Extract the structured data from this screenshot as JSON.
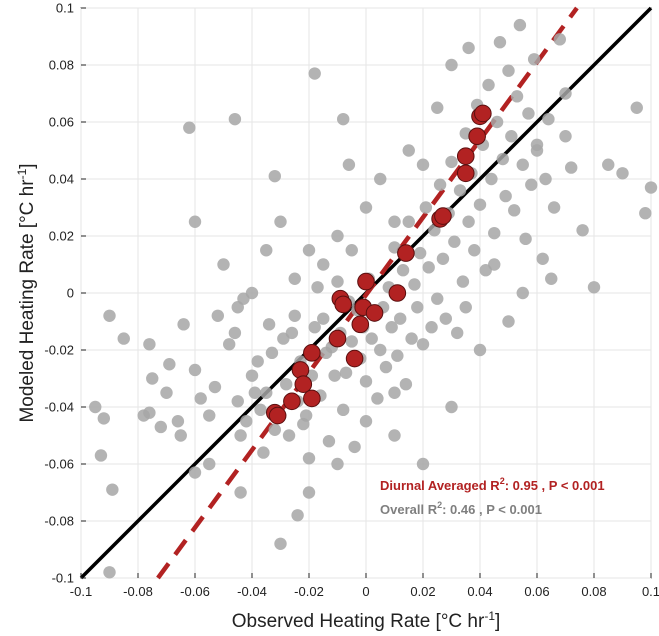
{
  "chart_data": {
    "type": "scatter",
    "xlabel": "Observed Heating Rate [°C hr",
    "xlabel_sup": "-1",
    "xlabel_end": "]",
    "ylabel": "Modeled Heating Rate [°C hr",
    "ylabel_sup": "-1",
    "ylabel_end": "]",
    "xlim": [
      -0.1,
      0.1
    ],
    "ylim": [
      -0.1,
      0.1
    ],
    "xticks": [
      -0.1,
      -0.08,
      -0.06,
      -0.04,
      -0.02,
      0,
      0.02,
      0.04,
      0.06,
      0.08,
      0.1
    ],
    "xtick_labels": [
      "-0.1",
      "-0.08",
      "-0.06",
      "-0.04",
      "-0.02",
      "0",
      "0.02",
      "0.04",
      "0.06",
      "0.08",
      "0.1"
    ],
    "yticks": [
      -0.1,
      -0.08,
      -0.06,
      -0.04,
      -0.02,
      0,
      0.02,
      0.04,
      0.06,
      0.08,
      0.1
    ],
    "ytick_labels": [
      "-0.1",
      "-0.08",
      "-0.06",
      "-0.04",
      "-0.02",
      "0",
      "0.02",
      "0.04",
      "0.06",
      "0.08",
      "0.1"
    ],
    "grid": true,
    "series": [
      {
        "name": "Overall",
        "color": "#a6a6a6",
        "points": [
          [
            -0.095,
            -0.04
          ],
          [
            -0.093,
            -0.057
          ],
          [
            -0.092,
            -0.044
          ],
          [
            -0.09,
            -0.008
          ],
          [
            -0.089,
            -0.069
          ],
          [
            -0.085,
            -0.016
          ],
          [
            -0.078,
            -0.043
          ],
          [
            -0.076,
            -0.042
          ],
          [
            -0.076,
            -0.018
          ],
          [
            -0.072,
            -0.047
          ],
          [
            -0.069,
            -0.025
          ],
          [
            -0.066,
            -0.045
          ],
          [
            -0.064,
            -0.011
          ],
          [
            -0.06,
            -0.027
          ],
          [
            -0.06,
            -0.063
          ],
          [
            -0.058,
            -0.037
          ],
          [
            -0.055,
            -0.043
          ],
          [
            -0.053,
            -0.033
          ],
          [
            -0.052,
            -0.008
          ],
          [
            -0.048,
            -0.018
          ],
          [
            -0.046,
            -0.014
          ],
          [
            -0.045,
            -0.038
          ],
          [
            -0.044,
            -0.07
          ],
          [
            -0.044,
            -0.05
          ],
          [
            -0.043,
            -0.002
          ],
          [
            -0.042,
            -0.045
          ],
          [
            -0.04,
            -0.029
          ],
          [
            -0.039,
            -0.035
          ],
          [
            -0.038,
            -0.024
          ],
          [
            -0.037,
            -0.041
          ],
          [
            -0.036,
            -0.056
          ],
          [
            -0.035,
            -0.035
          ],
          [
            -0.034,
            -0.011
          ],
          [
            -0.033,
            -0.021
          ],
          [
            -0.032,
            -0.048
          ],
          [
            -0.032,
            0.041
          ],
          [
            -0.03,
            -0.088
          ],
          [
            -0.029,
            -0.016
          ],
          [
            -0.028,
            -0.032
          ],
          [
            -0.027,
            -0.05
          ],
          [
            -0.026,
            -0.014
          ],
          [
            -0.025,
            -0.008
          ],
          [
            -0.024,
            -0.038
          ],
          [
            -0.023,
            -0.024
          ],
          [
            -0.022,
            -0.046
          ],
          [
            -0.021,
            -0.043
          ],
          [
            -0.02,
            -0.058
          ],
          [
            -0.019,
            -0.029
          ],
          [
            -0.018,
            -0.012
          ],
          [
            -0.017,
            0.002
          ],
          [
            -0.016,
            -0.036
          ],
          [
            -0.015,
            -0.009
          ],
          [
            -0.014,
            -0.021
          ],
          [
            -0.013,
            -0.052
          ],
          [
            -0.012,
            -0.019
          ],
          [
            -0.011,
            -0.029
          ],
          [
            -0.01,
            0.004
          ],
          [
            -0.009,
            -0.014
          ],
          [
            -0.008,
            -0.041
          ],
          [
            -0.007,
            -0.028
          ],
          [
            -0.006,
            -0.003
          ],
          [
            -0.005,
            -0.017
          ],
          [
            -0.004,
            -0.054
          ],
          [
            -0.003,
            -0.006
          ],
          [
            -0.002,
            -0.023
          ],
          [
            -0.001,
            -0.012
          ],
          [
            0.0,
            -0.031
          ],
          [
            0.001,
            0.005
          ],
          [
            0.002,
            -0.016
          ],
          [
            0.003,
            -0.008
          ],
          [
            0.004,
            -0.037
          ],
          [
            0.005,
            -0.02
          ],
          [
            0.006,
            -0.005
          ],
          [
            0.007,
            -0.026
          ],
          [
            0.008,
            0.002
          ],
          [
            0.009,
            -0.012
          ],
          [
            0.01,
            0.016
          ],
          [
            0.011,
            -0.022
          ],
          [
            0.012,
            -0.009
          ],
          [
            0.013,
            0.008
          ],
          [
            0.014,
            -0.032
          ],
          [
            0.015,
            0.025
          ],
          [
            0.016,
            -0.016
          ],
          [
            0.017,
            0.003
          ],
          [
            0.018,
            -0.005
          ],
          [
            0.019,
            0.014
          ],
          [
            0.02,
            -0.018
          ],
          [
            0.021,
            0.03
          ],
          [
            0.022,
            0.009
          ],
          [
            0.023,
            -0.012
          ],
          [
            0.024,
            0.022
          ],
          [
            0.025,
            -0.002
          ],
          [
            0.026,
            0.038
          ],
          [
            0.027,
            0.012
          ],
          [
            0.028,
            -0.009
          ],
          [
            0.029,
            0.028
          ],
          [
            0.03,
            0.046
          ],
          [
            0.031,
            0.018
          ],
          [
            0.032,
            -0.014
          ],
          [
            0.033,
            0.036
          ],
          [
            0.034,
            0.004
          ],
          [
            0.035,
            0.056
          ],
          [
            0.036,
            0.025
          ],
          [
            0.037,
            0.042
          ],
          [
            0.038,
            0.015
          ],
          [
            0.039,
            0.066
          ],
          [
            0.04,
            0.031
          ],
          [
            0.041,
            0.052
          ],
          [
            0.042,
            0.008
          ],
          [
            0.043,
            0.073
          ],
          [
            0.044,
            0.04
          ],
          [
            0.045,
            0.021
          ],
          [
            0.046,
            0.06
          ],
          [
            0.047,
            0.088
          ],
          [
            0.048,
            0.047
          ],
          [
            0.049,
            0.034
          ],
          [
            0.05,
            0.078
          ],
          [
            0.051,
            0.055
          ],
          [
            0.052,
            0.029
          ],
          [
            0.053,
            0.069
          ],
          [
            0.054,
            0.094
          ],
          [
            0.055,
            0.045
          ],
          [
            0.056,
            0.019
          ],
          [
            0.057,
            0.063
          ],
          [
            0.058,
            0.038
          ],
          [
            0.059,
            0.082
          ],
          [
            0.06,
            0.052
          ],
          [
            0.062,
            0.012
          ],
          [
            0.063,
            0.04
          ],
          [
            0.064,
            0.061
          ],
          [
            0.066,
            0.03
          ],
          [
            0.068,
            0.089
          ],
          [
            0.07,
            0.055
          ],
          [
            0.072,
            0.044
          ],
          [
            0.076,
            0.022
          ],
          [
            0.08,
            0.002
          ],
          [
            0.085,
            0.045
          ],
          [
            0.09,
            0.042
          ],
          [
            0.095,
            0.065
          ],
          [
            0.098,
            0.028
          ],
          [
            0.1,
            0.037
          ],
          [
            -0.062,
            0.058
          ],
          [
            -0.046,
            0.061
          ],
          [
            -0.018,
            0.077
          ],
          [
            -0.008,
            0.061
          ],
          [
            -0.006,
            0.045
          ],
          [
            -0.09,
            -0.098
          ],
          [
            -0.024,
            -0.078
          ],
          [
            0.036,
            0.086
          ],
          [
            0.05,
            -0.01
          ],
          [
            0.04,
            -0.02
          ],
          [
            0.03,
            -0.04
          ],
          [
            0.02,
            -0.06
          ],
          [
            0.01,
            -0.05
          ],
          [
            -0.05,
            0.01
          ],
          [
            -0.06,
            0.025
          ],
          [
            -0.03,
            0.025
          ],
          [
            -0.04,
            0.0
          ],
          [
            -0.02,
            0.015
          ],
          [
            -0.01,
            0.02
          ],
          [
            0.0,
            0.03
          ],
          [
            0.005,
            0.04
          ],
          [
            0.015,
            0.05
          ],
          [
            0.025,
            0.065
          ],
          [
            0.03,
            0.08
          ],
          [
            0.06,
            0.05
          ],
          [
            0.07,
            0.07
          ],
          [
            0.045,
            0.01
          ],
          [
            0.055,
            0.0
          ],
          [
            0.035,
            -0.005
          ],
          [
            0.065,
            0.005
          ],
          [
            -0.07,
            -0.035
          ],
          [
            -0.075,
            -0.03
          ],
          [
            -0.065,
            -0.05
          ],
          [
            -0.055,
            -0.06
          ],
          [
            -0.045,
            -0.005
          ],
          [
            -0.035,
            0.015
          ],
          [
            -0.025,
            0.005
          ],
          [
            -0.015,
            0.01
          ],
          [
            -0.005,
            0.015
          ],
          [
            0.01,
            0.025
          ],
          [
            0.02,
            0.045
          ],
          [
            0.0,
            -0.045
          ],
          [
            -0.01,
            -0.06
          ],
          [
            -0.02,
            -0.07
          ],
          [
            0.01,
            -0.035
          ]
        ]
      },
      {
        "name": "Diurnal Averaged",
        "color": "#b22222",
        "points": [
          [
            -0.032,
            -0.042
          ],
          [
            -0.031,
            -0.043
          ],
          [
            -0.026,
            -0.038
          ],
          [
            -0.023,
            -0.027
          ],
          [
            -0.022,
            -0.032
          ],
          [
            -0.019,
            -0.037
          ],
          [
            -0.019,
            -0.021
          ],
          [
            -0.01,
            -0.016
          ],
          [
            -0.009,
            -0.002
          ],
          [
            -0.008,
            -0.004
          ],
          [
            -0.004,
            -0.023
          ],
          [
            -0.002,
            -0.011
          ],
          [
            -0.001,
            -0.005
          ],
          [
            0.0,
            0.004
          ],
          [
            0.003,
            -0.007
          ],
          [
            0.011,
            0.0
          ],
          [
            0.014,
            0.014
          ],
          [
            0.026,
            0.026
          ],
          [
            0.027,
            0.027
          ],
          [
            0.035,
            0.042
          ],
          [
            0.035,
            0.048
          ],
          [
            0.039,
            0.055
          ],
          [
            0.04,
            0.062
          ],
          [
            0.041,
            0.063
          ]
        ]
      }
    ],
    "reference_lines": [
      {
        "name": "1:1",
        "color": "#000000",
        "style": "solid",
        "x": [
          -0.1,
          0.1
        ],
        "y": [
          -0.1,
          0.1
        ]
      },
      {
        "name": "Diurnal fit",
        "color": "#b22222",
        "style": "dashed",
        "x": [
          -0.073,
          0.074
        ],
        "y": [
          -0.1,
          0.1
        ]
      }
    ],
    "annotations": [
      {
        "text_pre": "Diurnal Averaged R",
        "sup": "2",
        "text_post": ": 0.95 , P < 0.001",
        "color": "#b22222"
      },
      {
        "text_pre": "Overall R",
        "sup": "2",
        "text_post": ": 0.46 , P < 0.001",
        "color": "#7f7f7f"
      }
    ]
  }
}
